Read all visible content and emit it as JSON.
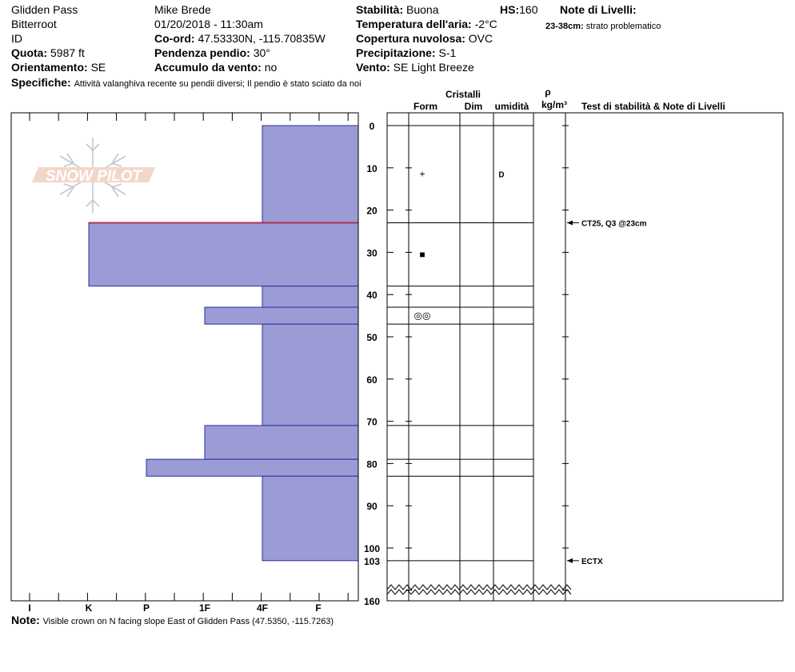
{
  "header": {
    "location": "Glidden Pass",
    "range": "Bitterroot",
    "id_label": "ID",
    "quota_label": "Quota:",
    "quota_value": "5987 ft",
    "orient_label": "Orientamento:",
    "orient_value": "SE",
    "observer": "Mike Brede",
    "datetime": "01/20/2018 - 11:30am",
    "coord_label": "Co-ord:",
    "coord_value": "47.53330N, -115.70835W",
    "slope_label": "Pendenza pendio:",
    "slope_value": "30°",
    "wind_load_label": "Accumulo da vento:",
    "wind_load_value": "no",
    "stability_label": "Stabilità:",
    "stability_value": "Buona",
    "air_temp_label": "Temperatura dell'aria:",
    "air_temp_value": "-2°C",
    "cloud_label": "Copertura nuvolosa:",
    "cloud_value": "OVC",
    "precip_label": "Precipitazione:",
    "precip_value": "S-1",
    "wind_label": "Vento:",
    "wind_value": "SE  Light Breeze",
    "hs_label": "HS:",
    "hs_value": "160",
    "layer_notes_label": "Note di Livelli:",
    "layer_note_range": "23-38cm:",
    "layer_note_text": "strato problematico",
    "specifics_label": "Specifiche:",
    "specifics_text": "Attività valanghiva recente su pendii diversi; Il pendio è stato sciato da noi"
  },
  "columns": {
    "crystals": "Cristalli",
    "form": "Form",
    "dim": "Dim",
    "moisture": "umidità",
    "rho": "ρ",
    "density_unit": "kg/m³",
    "tests": "Test di stabilità & Note di Livelli"
  },
  "footer": {
    "note_label": "Note:",
    "note_text": "Visible crown on N facing slope East of Glidden Pass (47.5350, -115.7263)"
  },
  "logo_text": "SNOW PILOT",
  "colors": {
    "hardness_fill": "#9b9bd6",
    "hardness_stroke": "#2d2d9a",
    "weak_layer": "#b0305a"
  },
  "chart_data": {
    "type": "bar",
    "hardness_ticks": [
      "I",
      "K",
      "P",
      "1F",
      "4F",
      "F"
    ],
    "depth_ticks": [
      "0",
      "10",
      "20",
      "30",
      "40",
      "50",
      "60",
      "70",
      "80",
      "90",
      "100"
    ],
    "depth_special_labels": [
      "103",
      "160"
    ],
    "layers": [
      {
        "top": 0,
        "bottom": 23,
        "hardness": "4F"
      },
      {
        "top": 23,
        "bottom": 38,
        "hardness": "K"
      },
      {
        "top": 38,
        "bottom": 43,
        "hardness": "4F"
      },
      {
        "top": 43,
        "bottom": 47,
        "hardness": "1F"
      },
      {
        "top": 47,
        "bottom": 71,
        "hardness": "4F"
      },
      {
        "top": 71,
        "bottom": 79,
        "hardness": "1F"
      },
      {
        "top": 79,
        "bottom": 83,
        "hardness": "P"
      },
      {
        "top": 83,
        "bottom": 103,
        "hardness": "4F"
      }
    ],
    "weak_layer_depth": 23,
    "layer_lines": [
      0,
      23,
      38,
      43,
      47,
      71,
      79,
      83,
      103
    ],
    "crystal_marks": [
      {
        "depth": 11.5,
        "form": "+",
        "moisture": "D"
      },
      {
        "depth": 30.5,
        "form": "■",
        "moisture": ""
      },
      {
        "depth": 45,
        "form": "◎◎",
        "moisture": ""
      }
    ],
    "tests": [
      {
        "depth": 23,
        "label": "CT25, Q3 @23cm"
      },
      {
        "depth": 103,
        "label": "ECTX"
      }
    ]
  }
}
